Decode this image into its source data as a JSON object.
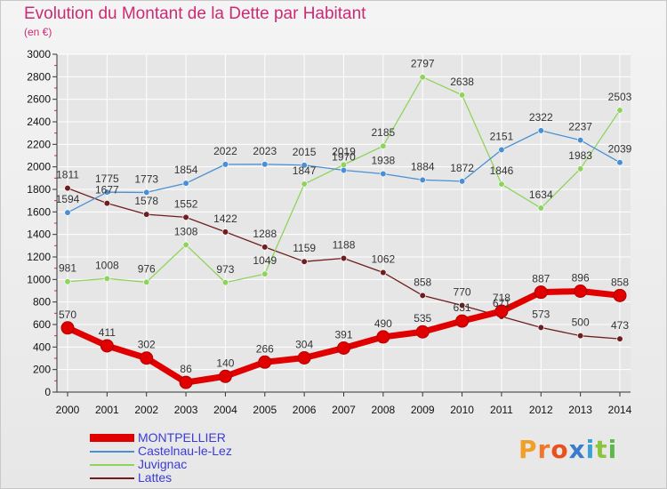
{
  "header": {
    "title": "Evolution du Montant de la Dette par Habitant",
    "subtitle": "(en €)"
  },
  "brand": {
    "logo_text": "Proxiti"
  },
  "colors": {
    "MONTPELLIER": "#e00000",
    "Castelnau-le-Lez": "#4a8fd4",
    "Juvignac": "#8ed45c",
    "Lattes": "#6e1e1e",
    "grid": "#ffffff",
    "axis": "#333333"
  },
  "chart_data": {
    "type": "line",
    "title": "Evolution du Montant de la Dette par Habitant",
    "subtitle": "(en €)",
    "x": [
      2000,
      2001,
      2002,
      2003,
      2004,
      2005,
      2006,
      2007,
      2008,
      2009,
      2010,
      2011,
      2012,
      2013,
      2014
    ],
    "ylim": [
      0,
      3000
    ],
    "yticks": [
      0,
      200,
      400,
      600,
      800,
      1000,
      1200,
      1400,
      1600,
      1800,
      2000,
      2200,
      2400,
      2600,
      2800,
      3000
    ],
    "grid": true,
    "legend_position": "bottom-left",
    "series": [
      {
        "name": "MONTPELLIER",
        "values": [
          570,
          411,
          302,
          86,
          140,
          266,
          304,
          391,
          490,
          535,
          631,
          718,
          887,
          896,
          858
        ]
      },
      {
        "name": "Castelnau-le-Lez",
        "values": [
          1594,
          1775,
          1773,
          1854,
          2022,
          2023,
          2015,
          1970,
          1938,
          1884,
          1872,
          2151,
          2322,
          2237,
          2039
        ]
      },
      {
        "name": "Juvignac",
        "values": [
          981,
          1008,
          976,
          1308,
          973,
          1049,
          1847,
          2019,
          2185,
          2797,
          2638,
          1846,
          1634,
          1983,
          2503
        ]
      },
      {
        "name": "Lattes",
        "values": [
          1811,
          1677,
          1578,
          1552,
          1422,
          1288,
          1159,
          1188,
          1062,
          858,
          770,
          671,
          573,
          500,
          473
        ]
      }
    ]
  }
}
